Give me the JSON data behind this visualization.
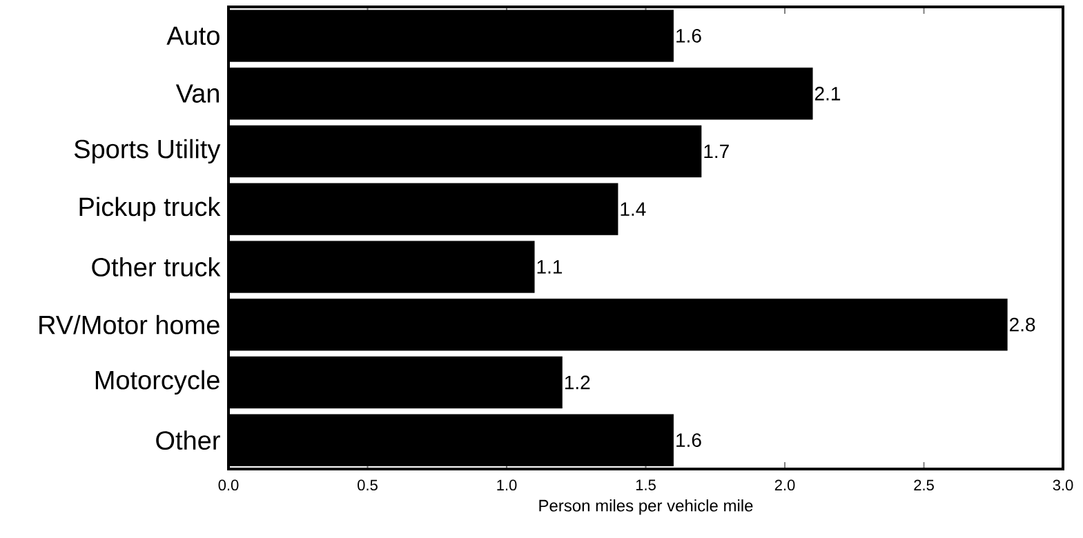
{
  "chart_data": {
    "type": "bar",
    "orientation": "horizontal",
    "xlabel": "Person miles per vehicle mile",
    "categories": [
      "Auto",
      "Van",
      "Sports Utility",
      "Pickup truck",
      "Other truck",
      "RV/Motor home",
      "Motorcycle",
      "Other"
    ],
    "values": [
      1.6,
      2.1,
      1.7,
      1.4,
      1.1,
      2.8,
      1.2,
      1.6
    ],
    "color": "#000000",
    "data_labels": true,
    "xlim": [
      0,
      3
    ],
    "xticks": [
      {
        "value": 0,
        "label": "0.0"
      },
      {
        "value": 0.5,
        "label": "0.5"
      },
      {
        "value": 1,
        "label": "1.0"
      },
      {
        "value": 1.5,
        "label": "1.5"
      },
      {
        "value": 2,
        "label": "2.0"
      },
      {
        "value": 2.5,
        "label": "2.5"
      },
      {
        "value": 3,
        "label": "3.0"
      }
    ]
  }
}
